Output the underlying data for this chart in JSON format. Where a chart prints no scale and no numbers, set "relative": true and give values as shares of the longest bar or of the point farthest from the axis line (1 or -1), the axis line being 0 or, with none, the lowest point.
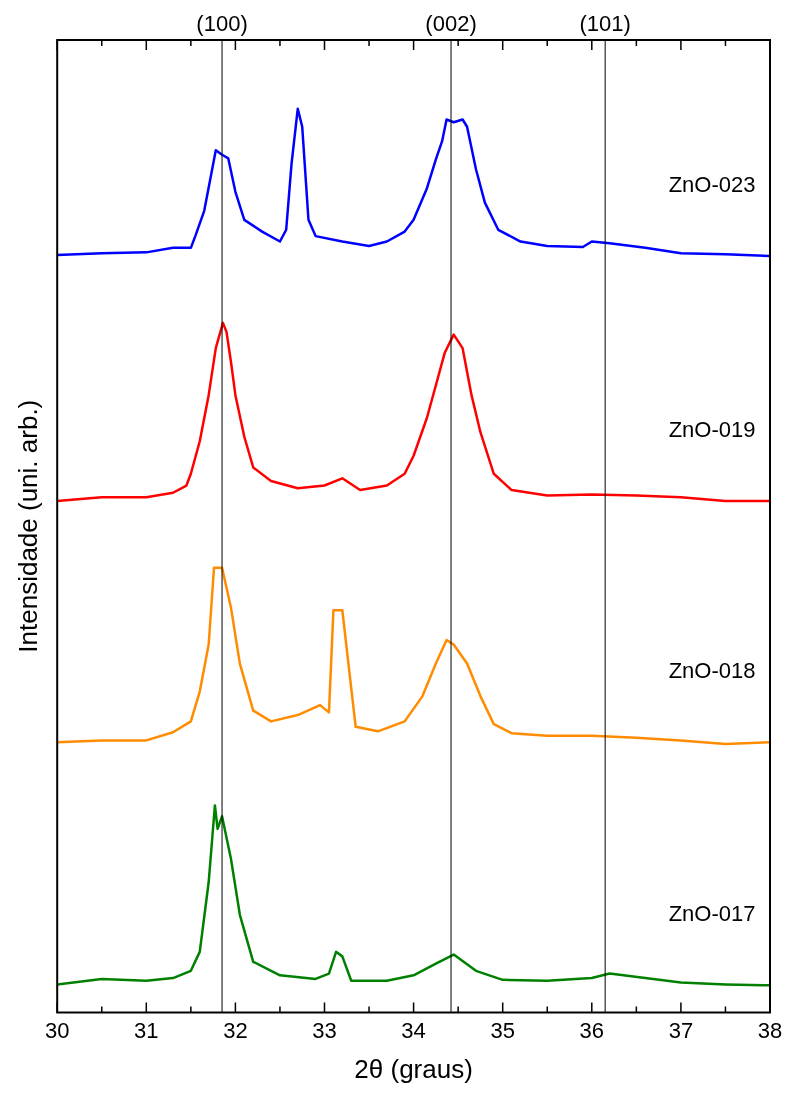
{
  "chart_data": {
    "type": "line",
    "xlabel": "2θ (graus)",
    "ylabel": "Intensidade (uni. arb.)",
    "relative": true,
    "legend": false,
    "marker": "none",
    "line_style": "solid",
    "xlim": [
      30,
      38
    ],
    "xticks": [
      30,
      {
        "value": 30.5,
        "label": null
      },
      31,
      {
        "value": 31.5,
        "label": null
      },
      32,
      {
        "value": 32.5,
        "label": null
      },
      33,
      {
        "value": 33.5,
        "label": null
      },
      34,
      {
        "value": 34.5,
        "label": null
      },
      35,
      {
        "value": 35.5,
        "label": null
      },
      36,
      {
        "value": 36.5,
        "label": null
      },
      37,
      {
        "value": 37.5,
        "label": null
      },
      38
    ],
    "ref_lines": [
      {
        "axis": "x",
        "value": 31.85,
        "color": "#000000"
      },
      {
        "axis": "x",
        "value": 34.42,
        "color": "#000000"
      },
      {
        "axis": "x",
        "value": 36.15,
        "color": "#000000"
      }
    ],
    "annotations": [
      "(100)",
      "(002)",
      "(101)"
    ],
    "series": [
      {
        "name": "ZnO-023",
        "color": "#0000ff",
        "x": [
          30,
          30.5,
          31,
          31.3,
          31.5,
          31.55,
          31.65,
          31.72,
          31.78,
          31.85,
          31.92,
          32,
          32.1,
          32.3,
          32.5,
          32.57,
          32.63,
          32.7,
          32.75,
          32.82,
          32.9,
          33.2,
          33.5,
          33.7,
          33.9,
          34,
          34.15,
          34.25,
          34.32,
          34.37,
          34.45,
          34.55,
          34.6,
          34.7,
          34.8,
          34.95,
          35.2,
          35.5,
          35.9,
          36,
          36.2,
          36.6,
          37,
          37.5,
          38
        ],
        "values": [
          0.838,
          0.84,
          0.841,
          0.846,
          0.846,
          0.859,
          0.887,
          0.923,
          0.954,
          0.949,
          0.945,
          0.908,
          0.877,
          0.864,
          0.853,
          0.866,
          0.939,
          1,
          0.98,
          0.877,
          0.859,
          0.853,
          0.848,
          0.853,
          0.864,
          0.877,
          0.912,
          0.944,
          0.964,
          0.988,
          0.985,
          0.988,
          0.98,
          0.933,
          0.896,
          0.866,
          0.853,
          0.848,
          0.847,
          0.853,
          0.851,
          0.846,
          0.84,
          0.839,
          0.837
        ]
      },
      {
        "name": "ZnO-019",
        "color": "#ff0000",
        "x": [
          30,
          30.5,
          31,
          31.3,
          31.45,
          31.5,
          31.6,
          31.7,
          31.78,
          31.86,
          31.9,
          31.95,
          32,
          32.1,
          32.2,
          32.4,
          32.7,
          33,
          33.2,
          33.4,
          33.7,
          33.9,
          34,
          34.15,
          34.25,
          34.35,
          34.45,
          34.55,
          34.65,
          34.75,
          34.9,
          35.1,
          35.5,
          36,
          36.5,
          37,
          37.5,
          38
        ],
        "values": [
          0.566,
          0.57,
          0.57,
          0.575,
          0.583,
          0.596,
          0.632,
          0.683,
          0.735,
          0.763,
          0.753,
          0.72,
          0.683,
          0.637,
          0.603,
          0.588,
          0.58,
          0.583,
          0.591,
          0.578,
          0.583,
          0.596,
          0.616,
          0.658,
          0.694,
          0.73,
          0.75,
          0.735,
          0.683,
          0.642,
          0.596,
          0.578,
          0.572,
          0.573,
          0.572,
          0.57,
          0.566,
          0.566
        ]
      },
      {
        "name": "ZnO-018",
        "color": "#ff8c00",
        "x": [
          30,
          30.5,
          31,
          31.3,
          31.5,
          31.6,
          31.7,
          31.76,
          31.85,
          31.95,
          32.05,
          32.2,
          32.4,
          32.7,
          32.95,
          33.05,
          33.1,
          33.2,
          33.28,
          33.35,
          33.6,
          33.9,
          34.1,
          34.25,
          34.37,
          34.45,
          34.6,
          34.75,
          34.9,
          35.1,
          35.5,
          36,
          36.5,
          37,
          37.5,
          38
        ],
        "values": [
          0.299,
          0.301,
          0.301,
          0.31,
          0.322,
          0.355,
          0.407,
          0.492,
          0.492,
          0.448,
          0.386,
          0.334,
          0.322,
          0.329,
          0.34,
          0.332,
          0.445,
          0.445,
          0.376,
          0.316,
          0.311,
          0.322,
          0.35,
          0.386,
          0.412,
          0.407,
          0.386,
          0.35,
          0.319,
          0.309,
          0.306,
          0.306,
          0.304,
          0.301,
          0.297,
          0.299
        ]
      },
      {
        "name": "ZnO-017",
        "color": "#008000",
        "x": [
          30,
          30.5,
          31,
          31.3,
          31.5,
          31.6,
          31.7,
          31.77,
          31.8,
          31.85,
          31.95,
          32.05,
          32.2,
          32.5,
          32.9,
          33.05,
          33.13,
          33.2,
          33.3,
          33.7,
          34,
          34.25,
          34.45,
          34.7,
          35,
          35.5,
          36,
          36.2,
          36.6,
          37,
          37.5,
          38
        ],
        "values": [
          0.031,
          0.037,
          0.035,
          0.038,
          0.046,
          0.067,
          0.144,
          0.229,
          0.203,
          0.217,
          0.17,
          0.108,
          0.056,
          0.041,
          0.037,
          0.043,
          0.067,
          0.062,
          0.035,
          0.035,
          0.041,
          0.054,
          0.064,
          0.046,
          0.036,
          0.035,
          0.038,
          0.043,
          0.038,
          0.033,
          0.031,
          0.03
        ]
      }
    ]
  }
}
